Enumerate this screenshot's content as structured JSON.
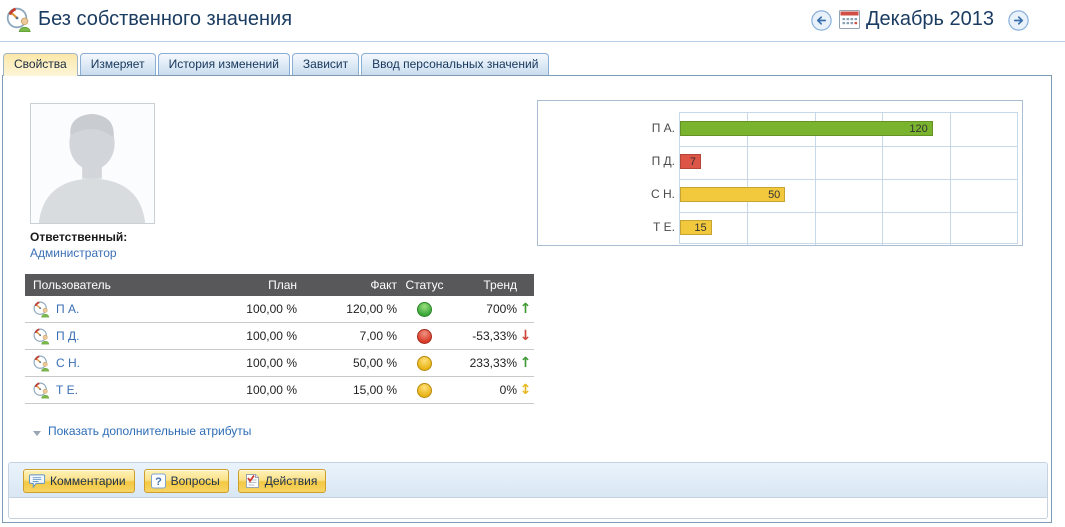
{
  "header": {
    "title": "Без собственного значения",
    "period": "Декабрь 2013",
    "icons": {
      "app": "gauge-user-icon",
      "prev": "arrow-left-circle-icon",
      "calendar": "calendar-icon",
      "next": "arrow-right-circle-icon"
    }
  },
  "tabs": [
    {
      "label": "Свойства",
      "active": true
    },
    {
      "label": "Измеряет",
      "active": false
    },
    {
      "label": "История изменений",
      "active": false
    },
    {
      "label": "Зависит",
      "active": false
    },
    {
      "label": "Ввод персональных значений",
      "active": false
    }
  ],
  "owner": {
    "label": "Ответственный:",
    "name": "Администратор"
  },
  "table": {
    "columns": [
      "Пользователь",
      "План",
      "Факт",
      "Статус",
      "Тренд"
    ],
    "rows": [
      {
        "user": "П А.",
        "plan": "100,00 %",
        "fact": "120,00 %",
        "status": "green",
        "trend": "700%",
        "trend_dir": "up"
      },
      {
        "user": "П Д.",
        "plan": "100,00 %",
        "fact": "7,00 %",
        "status": "red",
        "trend": "-53,33%",
        "trend_dir": "down"
      },
      {
        "user": "С Н.",
        "plan": "100,00 %",
        "fact": "50,00 %",
        "status": "yellow",
        "trend": "233,33%",
        "trend_dir": "up"
      },
      {
        "user": "Т Е.",
        "plan": "100,00 %",
        "fact": "15,00 %",
        "status": "yellow",
        "trend": "0%",
        "trend_dir": "updown"
      }
    ]
  },
  "chart_data": {
    "type": "bar",
    "orientation": "horizontal",
    "categories": [
      "П А.",
      "П Д.",
      "С Н.",
      "Т Е."
    ],
    "values": [
      120,
      7,
      50,
      15
    ],
    "colors": [
      "#7ab32e",
      "#dc5546",
      "#f2c93c",
      "#f2c93c"
    ],
    "xlim": [
      0,
      160
    ],
    "grid": true,
    "gridline_step": 32,
    "value_labels": "inside-right"
  },
  "links": {
    "show_attributes": "Показать дополнительные атрибуты"
  },
  "toolbar": {
    "buttons": [
      {
        "label": "Комментарии",
        "icon": "speech-bubble-icon"
      },
      {
        "label": "Вопросы",
        "icon": "question-mark-icon"
      },
      {
        "label": "Действия",
        "icon": "note-check-icon"
      }
    ]
  },
  "colors": {
    "title": "#1b3c61",
    "link": "#3a6fb5",
    "table_header_bg": "#58585a",
    "status_green": "#3aa73a",
    "status_red": "#d93a28",
    "status_yellow": "#e8b416",
    "bar_green": "#7ab32e",
    "bar_red": "#dc5546",
    "bar_yellow": "#f2c93c",
    "active_tab": "#fdeebd",
    "toolbar_strip": "#dfeaf6",
    "button_yellow": "#f6cf55"
  }
}
